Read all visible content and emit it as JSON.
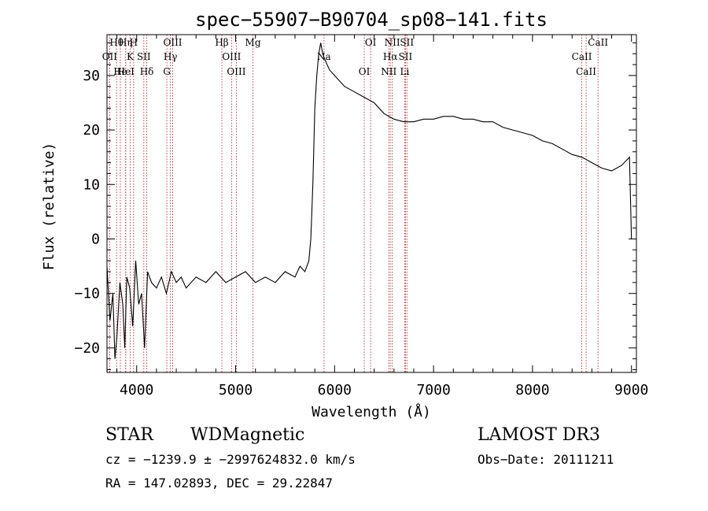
{
  "chart_data": {
    "type": "line",
    "title": "spec−55907−B90704_sp08−141.fits",
    "xlabel": "Wavelength (Å)",
    "ylabel": "Flux (relative)",
    "xlim": [
      3700,
      9050
    ],
    "ylim": [
      -24.5,
      37.5
    ],
    "x_ticks": [
      4000,
      5000,
      6000,
      7000,
      8000,
      9000
    ],
    "y_ticks": [
      -20,
      -10,
      0,
      10,
      20,
      30
    ],
    "series": [
      {
        "name": "flux",
        "x": [
          3700,
          3730,
          3760,
          3780,
          3800,
          3830,
          3860,
          3880,
          3900,
          3930,
          3960,
          3990,
          4020,
          4050,
          4080,
          4110,
          4150,
          4200,
          4250,
          4300,
          4350,
          4400,
          4450,
          4500,
          4600,
          4700,
          4800,
          4900,
          5000,
          5100,
          5200,
          5300,
          5400,
          5500,
          5600,
          5650,
          5700,
          5740,
          5760,
          5780,
          5800,
          5820,
          5840,
          5860,
          5880,
          5900,
          5950,
          6000,
          6100,
          6200,
          6300,
          6400,
          6500,
          6600,
          6700,
          6800,
          6900,
          7000,
          7100,
          7200,
          7300,
          7400,
          7500,
          7600,
          7700,
          7800,
          7900,
          8000,
          8100,
          8200,
          8300,
          8400,
          8500,
          8600,
          8700,
          8800,
          8900,
          8980,
          9000
        ],
        "y": [
          -5,
          -15,
          -10,
          -22,
          -18,
          -8,
          -12,
          -20,
          -7,
          -9,
          -16,
          -4,
          -12,
          -10,
          -20,
          -6,
          -8,
          -9,
          -7,
          -10,
          -6,
          -8,
          -7,
          -9,
          -7,
          -8,
          -6,
          -8,
          -7,
          -6,
          -8,
          -7,
          -8,
          -6,
          -7,
          -5,
          -6,
          -4,
          0,
          10,
          24,
          30,
          34,
          36,
          34,
          33,
          31,
          30,
          28,
          27,
          26,
          25,
          23,
          22,
          21.5,
          21.5,
          22,
          22,
          22.5,
          22.5,
          22,
          22,
          21.5,
          21.5,
          20.5,
          20,
          19.5,
          19,
          18,
          17.5,
          16.5,
          15.5,
          15,
          14,
          13,
          12.5,
          13.5,
          15,
          0
        ]
      }
    ],
    "lines": [
      {
        "label": "Hθ",
        "x": 3797
      },
      {
        "label": "OII",
        "x": 3727
      },
      {
        "label": "He",
        "x": 3835
      },
      {
        "label": "Hη",
        "x": 3889
      },
      {
        "label": "K",
        "x": 3934
      },
      {
        "label": "HeI",
        "x": 3889
      },
      {
        "label": "H",
        "x": 3969
      },
      {
        "label": "SII",
        "x": 4072
      },
      {
        "label": "Hδ",
        "x": 4102
      },
      {
        "label": "OIII",
        "x": 4364
      },
      {
        "label": "Hγ",
        "x": 4341
      },
      {
        "label": "G",
        "x": 4305
      },
      {
        "label": "Hβ",
        "x": 4861
      },
      {
        "label": "OIII",
        "x": 4959
      },
      {
        "label": "OIII",
        "x": 5007
      },
      {
        "label": "Mg",
        "x": 5175
      },
      {
        "label": "Na",
        "x": 5893
      },
      {
        "label": "OI",
        "x": 6300
      },
      {
        "label": "OI",
        "x": 6364
      },
      {
        "label": "Hα",
        "x": 6563
      },
      {
        "label": "NII",
        "x": 6548
      },
      {
        "label": "NII",
        "x": 6583
      },
      {
        "label": "SII",
        "x": 6716
      },
      {
        "label": "Li",
        "x": 6708
      },
      {
        "label": "SII",
        "x": 6731
      },
      {
        "label": "CaII",
        "x": 8498
      },
      {
        "label": "CaII",
        "x": 8542
      },
      {
        "label": "CaII",
        "x": 8662
      }
    ]
  },
  "info": {
    "class": "STAR",
    "subclass": "WDMagnetic",
    "survey": "LAMOST DR3",
    "cz": "cz = −1239.9 ± −2997624832.0 km/s",
    "obs_date": "Obs−Date: 20111211",
    "radec": "RA = 147.02893, DEC =  29.22847"
  }
}
